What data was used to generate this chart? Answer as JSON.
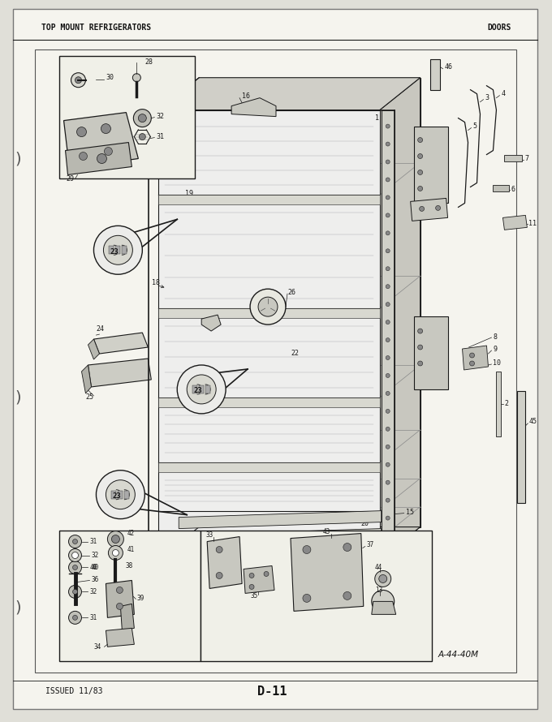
{
  "title_left": "TOP MOUNT REFRIGERATORS",
  "title_right": "DOORS",
  "footer_left": "ISSUED 11/83",
  "footer_center": "D-11",
  "figure_ref": "A-44-40M",
  "bg_color": "#f0efe8",
  "page_bg": "#e0dfd8",
  "line_color": "#1a1a1a",
  "figsize": [
    6.8,
    8.9
  ],
  "dpi": 100
}
